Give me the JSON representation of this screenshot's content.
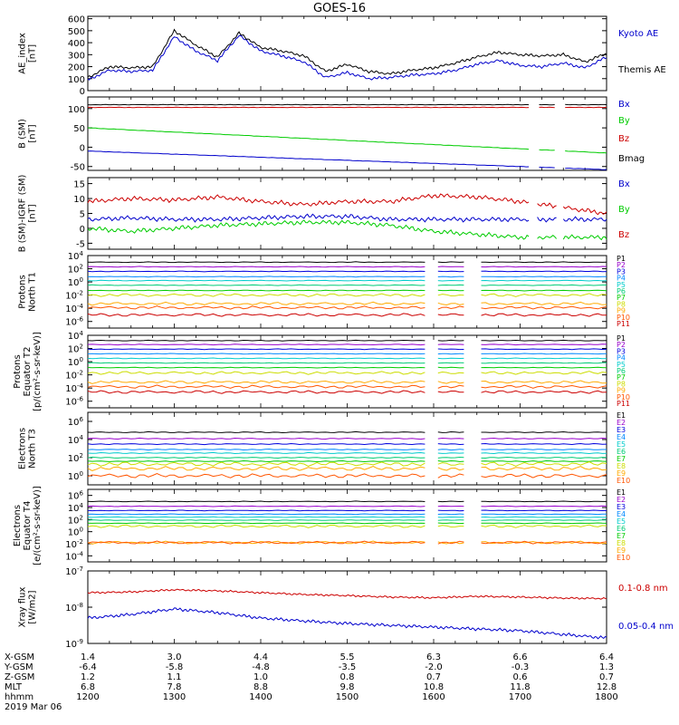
{
  "title": "GOES-16",
  "colors": {
    "black": "#000000",
    "blue": "#0000cc",
    "red": "#cc0000",
    "green": "#00cc00",
    "p": [
      "#000000",
      "#9900cc",
      "#0000dd",
      "#0088ff",
      "#00cccc",
      "#00cc77",
      "#00cc00",
      "#ccdd00",
      "#ffaa00",
      "#ff5500",
      "#cc0000"
    ]
  },
  "chart_data": [
    {
      "type": "line",
      "panel": "ae",
      "ylabel": [
        "AE_index",
        "[nT]"
      ],
      "ticks": [
        "0",
        "100",
        "200",
        "300",
        "400",
        "500",
        "600"
      ],
      "legend": [
        "Kyoto AE",
        "Themis AE"
      ],
      "ylim": [
        0,
        620
      ],
      "x": [
        12.0,
        12.25,
        12.5,
        12.75,
        13.0,
        13.25,
        13.5,
        13.75,
        14.0,
        14.25,
        14.5,
        14.75,
        15.0,
        15.25,
        15.5,
        15.75,
        16.0,
        16.25,
        16.5,
        16.75,
        17.0,
        17.25,
        17.5,
        17.75,
        18.0
      ],
      "series": [
        {
          "name": "Kyoto AE",
          "values": [
            90,
            170,
            160,
            170,
            450,
            330,
            250,
            460,
            330,
            290,
            240,
            110,
            150,
            100,
            110,
            130,
            140,
            170,
            220,
            250,
            210,
            200,
            230,
            190,
            280
          ]
        },
        {
          "name": "Themis AE",
          "values": [
            110,
            200,
            190,
            200,
            500,
            380,
            280,
            480,
            360,
            330,
            290,
            160,
            220,
            160,
            140,
            170,
            190,
            230,
            280,
            320,
            300,
            290,
            300,
            240,
            310
          ]
        }
      ]
    },
    {
      "type": "line",
      "panel": "b",
      "ylabel": [
        "B (SM)",
        "[nT]"
      ],
      "ticks": [
        "-50",
        "0",
        "50",
        "100"
      ],
      "legend": [
        "Bx",
        "By",
        "Bz",
        "Bmag"
      ],
      "ylim": [
        -60,
        130
      ],
      "x": [
        12.0,
        18.0
      ],
      "gaps": [
        [
          17.1,
          17.2
        ],
        [
          17.42,
          17.5
        ]
      ],
      "series": [
        {
          "name": "Bx",
          "values": [
            -10,
            -58
          ]
        },
        {
          "name": "By",
          "values": [
            50,
            -15
          ]
        },
        {
          "name": "Bz",
          "values": [
            103,
            103
          ]
        },
        {
          "name": "Bmag",
          "values": [
            110,
            110
          ]
        }
      ]
    },
    {
      "type": "line",
      "panel": "db",
      "ylabel": [
        "B (SM)-IGRF (SM)",
        "[nT]"
      ],
      "ticks": [
        "-5",
        "0",
        "5",
        "10",
        "15"
      ],
      "legend": [
        "Bx",
        "By",
        "Bz"
      ],
      "ylim": [
        -7,
        17
      ],
      "x": [
        12.0,
        12.5,
        13.0,
        13.5,
        14.0,
        14.5,
        15.0,
        15.5,
        16.0,
        16.5,
        17.0,
        17.5,
        18.0
      ],
      "series": [
        {
          "name": "Bx",
          "values": [
            3,
            3.5,
            3,
            3,
            3.5,
            4,
            4,
            3,
            3,
            3,
            3,
            3,
            3
          ]
        },
        {
          "name": "By",
          "values": [
            0,
            -1,
            0,
            1,
            1.5,
            2,
            2,
            1,
            -1,
            -2,
            -3,
            -3,
            -3
          ]
        },
        {
          "name": "Bz",
          "values": [
            9,
            10,
            9.5,
            10.5,
            9,
            8,
            9,
            9,
            11,
            10.5,
            9,
            7,
            5
          ]
        }
      ]
    },
    {
      "type": "line",
      "panel": "pn",
      "ylabel": [
        "Protons",
        "North T1"
      ],
      "log": true,
      "ylim_exp": [
        -7,
        4
      ],
      "tick_exps": [
        4,
        2,
        0,
        -2,
        -4,
        -6
      ],
      "legend": [
        "P1",
        "P2",
        "P3",
        "P4",
        "P5",
        "P6",
        "P7",
        "P8",
        "P9",
        "P10",
        "P11"
      ],
      "levels_exp": [
        3.0,
        2.3,
        1.6,
        0.8,
        0.2,
        -0.5,
        -1.3,
        -2.0,
        -3.3,
        -3.9,
        -5.0
      ],
      "gaps": [
        [
          15.92,
          16.05
        ],
        [
          16.38,
          16.52
        ]
      ]
    },
    {
      "type": "line",
      "panel": "pe",
      "ylabel": [
        "Protons",
        "Equator T2",
        "[p/(cm²-s-sr-keV)]"
      ],
      "log": true,
      "ylim_exp": [
        -7,
        4
      ],
      "tick_exps": [
        4,
        2,
        0,
        -2,
        -4,
        -6
      ],
      "legend": [
        "P1",
        "P2",
        "P3",
        "P4",
        "P5",
        "P6",
        "P7",
        "P8",
        "P9",
        "P10",
        "P11"
      ],
      "levels_exp": [
        3.2,
        2.6,
        1.9,
        1.2,
        0.5,
        -0.2,
        -0.9,
        -1.7,
        -3.1,
        -3.8,
        -4.6
      ],
      "gaps": [
        [
          15.92,
          16.05
        ],
        [
          16.38,
          16.52
        ]
      ]
    },
    {
      "type": "line",
      "panel": "en",
      "ylabel": [
        "Electrons",
        "North T3"
      ],
      "log": true,
      "ylim_exp": [
        -1,
        7
      ],
      "tick_exps": [
        6,
        4,
        2,
        0
      ],
      "legend": [
        "E1",
        "E2",
        "E3",
        "E4",
        "E5",
        "E6",
        "E7",
        "E8",
        "E9",
        "E10"
      ],
      "levels_exp": [
        4.8,
        4.1,
        3.5,
        2.9,
        2.5,
        2.0,
        1.6,
        1.3,
        0.8,
        0.0
      ],
      "gaps": [
        [
          15.92,
          16.05
        ],
        [
          16.38,
          16.52
        ]
      ]
    },
    {
      "type": "line",
      "panel": "ee",
      "ylabel": [
        "Electrons",
        "Equator T4",
        "[e/(cm²-s-sr-keV)]"
      ],
      "log": true,
      "ylim_exp": [
        -5,
        7
      ],
      "tick_exps": [
        6,
        4,
        2,
        0,
        -2,
        -4
      ],
      "legend": [
        "E1",
        "E2",
        "E3",
        "E4",
        "E5",
        "E6",
        "E7",
        "E8",
        "E9",
        "E10"
      ],
      "levels_exp": [
        5.0,
        4.2,
        3.5,
        2.9,
        2.4,
        1.9,
        1.4,
        0.9,
        -1.8,
        -1.8
      ],
      "gaps": [
        [
          15.92,
          16.05
        ],
        [
          16.38,
          16.52
        ]
      ]
    },
    {
      "type": "line",
      "panel": "xr",
      "ylabel": [
        "Xray flux",
        "[W/m2]"
      ],
      "log": true,
      "ylim_exp": [
        -9,
        -7
      ],
      "tick_exps": [
        -7,
        -8,
        -9
      ],
      "legend": [
        "0.1-0.8 nm",
        "0.05-0.4 nm"
      ],
      "x": [
        12.0,
        12.5,
        13.0,
        13.5,
        14.0,
        14.5,
        15.0,
        15.5,
        16.0,
        16.5,
        17.0,
        17.5,
        18.0
      ],
      "series": [
        {
          "name": "0.1-0.8 nm",
          "values": [
            -7.6,
            -7.58,
            -7.52,
            -7.55,
            -7.6,
            -7.65,
            -7.68,
            -7.72,
            -7.74,
            -7.7,
            -7.72,
            -7.75,
            -7.76
          ]
        },
        {
          "name": "0.05-0.4 nm",
          "values": [
            -8.3,
            -8.2,
            -8.05,
            -8.15,
            -8.3,
            -8.38,
            -8.45,
            -8.5,
            -8.55,
            -8.6,
            -8.65,
            -8.75,
            -8.85
          ]
        }
      ]
    }
  ],
  "axis_table": {
    "x_positions": [
      12.0,
      13.0,
      14.0,
      15.0,
      16.0,
      17.0,
      18.0
    ],
    "rows": [
      {
        "label": "X-GSM",
        "values": [
          "1.4",
          "3.0",
          "4.4",
          "5.5",
          "6.3",
          "6.6",
          "6.4"
        ]
      },
      {
        "label": "Y-GSM",
        "values": [
          "-6.4",
          "-5.8",
          "-4.8",
          "-3.5",
          "-2.0",
          "-0.3",
          "1.3"
        ]
      },
      {
        "label": "Z-GSM",
        "values": [
          "1.2",
          "1.1",
          "1.0",
          "0.8",
          "0.7",
          "0.6",
          "0.7"
        ]
      },
      {
        "label": "MLT",
        "values": [
          "6.8",
          "7.8",
          "8.8",
          "9.8",
          "10.8",
          "11.8",
          "12.8"
        ]
      },
      {
        "label": "hhmm",
        "values": [
          "1200",
          "1300",
          "1400",
          "1500",
          "1600",
          "1700",
          "1800"
        ]
      }
    ],
    "date": "2019 Mar 06"
  }
}
